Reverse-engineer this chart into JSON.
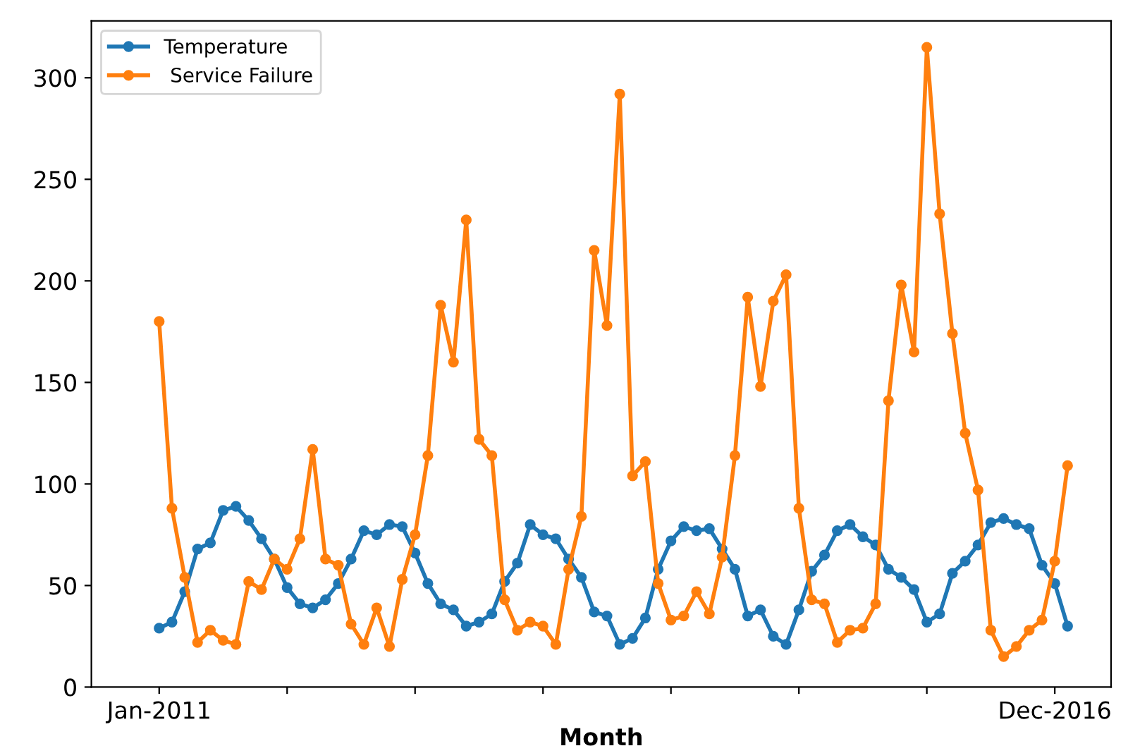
{
  "chart_data": {
    "type": "line",
    "xlabel": "Month",
    "categories": [
      "Jan-2011",
      null,
      null,
      null,
      null,
      null,
      null,
      null,
      null,
      null,
      null,
      null,
      null,
      null,
      null,
      null,
      null,
      null,
      null,
      null,
      null,
      null,
      null,
      null,
      null,
      null,
      null,
      null,
      null,
      null,
      null,
      null,
      null,
      null,
      null,
      null,
      null,
      null,
      null,
      null,
      null,
      null,
      null,
      null,
      null,
      null,
      null,
      null,
      null,
      null,
      null,
      null,
      null,
      null,
      null,
      null,
      null,
      null,
      null,
      null,
      null,
      null,
      null,
      null,
      null,
      null,
      null,
      null,
      null,
      null,
      "Dec-2016",
      null
    ],
    "series": [
      {
        "name": "Temperature",
        "color": "#1f77b4",
        "values": [
          29,
          32,
          47,
          68,
          71,
          87,
          89,
          82,
          73,
          63,
          49,
          41,
          39,
          43,
          51,
          63,
          77,
          75,
          80,
          79,
          66,
          51,
          41,
          38,
          30,
          32,
          36,
          52,
          61,
          80,
          75,
          73,
          63,
          54,
          37,
          35,
          21,
          24,
          34,
          58,
          72,
          79,
          77,
          78,
          68,
          58,
          35,
          38,
          25,
          21,
          38,
          57,
          65,
          77,
          80,
          74,
          70,
          58,
          54,
          48,
          32,
          36,
          56,
          62,
          70,
          81,
          83,
          80,
          78,
          60,
          51,
          30
        ]
      },
      {
        "name": " Service Failure",
        "color": "#ff7f0e",
        "values": [
          180,
          88,
          54,
          22,
          28,
          23,
          21,
          52,
          48,
          63,
          58,
          73,
          117,
          63,
          60,
          31,
          21,
          39,
          20,
          53,
          75,
          114,
          188,
          160,
          230,
          122,
          114,
          43,
          28,
          32,
          30,
          21,
          58,
          84,
          215,
          178,
          292,
          104,
          111,
          51,
          33,
          35,
          47,
          36,
          64,
          114,
          192,
          148,
          190,
          203,
          88,
          43,
          41,
          22,
          28,
          29,
          41,
          141,
          198,
          165,
          315,
          233,
          174,
          125,
          97,
          28,
          15,
          20,
          28,
          33,
          62,
          109
        ]
      }
    ],
    "ylim": [
      0,
      328
    ],
    "yticks": [
      0,
      50,
      100,
      150,
      200,
      250,
      300
    ],
    "marker": "circle",
    "line_style": "solid",
    "grid": false,
    "legend": "top left"
  }
}
